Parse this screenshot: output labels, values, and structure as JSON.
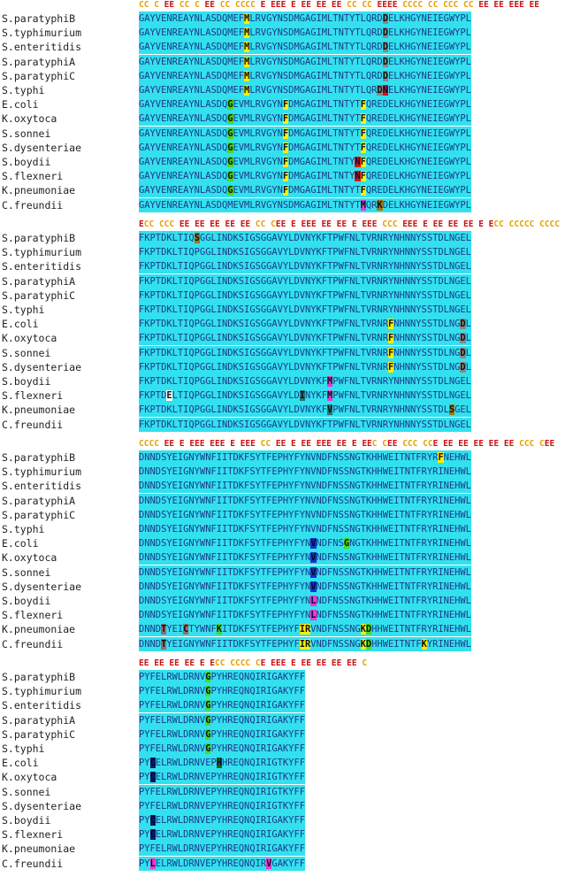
{
  "colors": {
    "background": "#33e0ee",
    "residue": "#1a3a88",
    "annotation_C": "#e8a000",
    "annotation_E": "#cc1010",
    "hl_yellow": "#ffee00",
    "hl_green": "#44dd22",
    "hl_gray": "#888888",
    "hl_red": "#dd1111",
    "hl_magenta": "#ee33dd",
    "hl_blue": "#1133cc",
    "hl_navy": "#0a1a66",
    "hl_olive": "#9c7a10",
    "hl_teal": "#1a7a7a",
    "hl_darkgreen": "#156615",
    "hl_brown": "#9a6a6a",
    "hl_white": "#ffffff"
  },
  "blocks": [
    {
      "annotation": "CC C EE CC C EE CC CCCC E EEE E EE EE EE CC CC EEEE CCCC CC CCC CC EE EE EEE EE",
      "rows": [
        {
          "name": "S.paratyphiB",
          "seq": "GAYVENREAYNLASDQMEFMLRVGYNSDMGAGIMLTNTYTLQRDDELKHGYNEIEGWYPL",
          "hl": [
            {
              "i": 19,
              "c": "hl_yellow"
            },
            {
              "i": 44,
              "c": "hl_gray"
            }
          ]
        },
        {
          "name": "S.typhimurium",
          "seq": "GAYVENREAYNLASDQMEFMLRVGYNSDMGAGIMLTNTYTLQRDDELKHGYNEIEGWYPL",
          "hl": [
            {
              "i": 19,
              "c": "hl_yellow"
            },
            {
              "i": 44,
              "c": "hl_gray"
            }
          ]
        },
        {
          "name": "S.enteritidis",
          "seq": "GAYVENREAYNLASDQMEFMLRVGYNSDMGAGIMLTNTYTLQRDDELKHGYNEIEGWYPL",
          "hl": [
            {
              "i": 19,
              "c": "hl_yellow"
            },
            {
              "i": 44,
              "c": "hl_gray"
            }
          ]
        },
        {
          "name": "S.paratyphiA",
          "seq": "GAYVENREAYNLASDQMEFMLRVGYNSDMGAGIMLTNTYTLQRDDELKHGYNEIEGWYPL",
          "hl": [
            {
              "i": 19,
              "c": "hl_yellow"
            },
            {
              "i": 44,
              "c": "hl_gray"
            }
          ]
        },
        {
          "name": "S.paratyphiC",
          "seq": "GAYVENREAYNLASDQMEFMLRVGYNSDMGAGIMLTNTYTLQRDDELKHGYNEIEGWYPL",
          "hl": [
            {
              "i": 19,
              "c": "hl_yellow"
            },
            {
              "i": 44,
              "c": "hl_gray"
            }
          ]
        },
        {
          "name": "S.typhi",
          "seq": "GAYVENREAYNLASDQMEFMLRVGYNSDMGAGIMLTNTYTLQRDNELKHGYNEIEGWYPL",
          "hl": [
            {
              "i": 19,
              "c": "hl_yellow"
            },
            {
              "i": 43,
              "c": "hl_gray"
            },
            {
              "i": 44,
              "c": "hl_red"
            }
          ]
        },
        {
          "name": "E.coli",
          "seq": "GAYVENREAYNLASDQGEVMLRVGYNFDMGAGIMLTNTYTFQREDELKHGYNEIEGWYPL",
          "hl": [
            {
              "i": 16,
              "c": "hl_green"
            },
            {
              "i": 26,
              "c": "hl_yellow"
            },
            {
              "i": 40,
              "c": "hl_yellow"
            }
          ]
        },
        {
          "name": "K.oxytoca",
          "seq": "GAYVENREAYNLASDQGEVMLRVGYNFDMGAGIMLTNTYTFQREDELKHGYNEIEGWYPL",
          "hl": [
            {
              "i": 16,
              "c": "hl_green"
            },
            {
              "i": 26,
              "c": "hl_yellow"
            },
            {
              "i": 40,
              "c": "hl_yellow"
            }
          ]
        },
        {
          "name": "S.sonnei",
          "seq": "GAYVENREAYNLASDQGEVMLRVGYNFDMGAGIMLTNTYTFQREDELKHGYNEIEGWYPL",
          "hl": [
            {
              "i": 16,
              "c": "hl_green"
            },
            {
              "i": 26,
              "c": "hl_yellow"
            },
            {
              "i": 40,
              "c": "hl_yellow"
            }
          ]
        },
        {
          "name": "S.dysenteriae",
          "seq": "GAYVENREAYNLASDQGEVMLRVGYNFDMGAGIMLTNTYTFQREDELKHGYNEIEGWYPL",
          "hl": [
            {
              "i": 16,
              "c": "hl_green"
            },
            {
              "i": 26,
              "c": "hl_yellow"
            },
            {
              "i": 40,
              "c": "hl_yellow"
            }
          ]
        },
        {
          "name": "S.boydii",
          "seq": "GAYVENREAYNLASDQGEVMLRVGYNFDMGAGIMLTNTYNFQREDELKHGYNEIEGWYPL",
          "hl": [
            {
              "i": 16,
              "c": "hl_green"
            },
            {
              "i": 26,
              "c": "hl_yellow"
            },
            {
              "i": 39,
              "c": "hl_red"
            },
            {
              "i": 40,
              "c": "hl_yellow"
            }
          ]
        },
        {
          "name": "S.flexneri",
          "seq": "GAYVENREAYNLASDQGEVMLRVGYNFDMGAGIMLTNTYNFQREDELKHGYNEIEGWYPL",
          "hl": [
            {
              "i": 16,
              "c": "hl_green"
            },
            {
              "i": 26,
              "c": "hl_yellow"
            },
            {
              "i": 39,
              "c": "hl_red"
            },
            {
              "i": 40,
              "c": "hl_yellow"
            }
          ]
        },
        {
          "name": "K.pneumoniae",
          "seq": "GAYVENREAYNLASDQGEVMLRVGYNFDMGAGIMLTNTYTFQREDELKHGYNEIEGWYPL",
          "hl": [
            {
              "i": 16,
              "c": "hl_green"
            },
            {
              "i": 26,
              "c": "hl_yellow"
            },
            {
              "i": 40,
              "c": "hl_yellow"
            }
          ]
        },
        {
          "name": "C.freundii",
          "seq": "GAYVENREAYNLASDQMEVMLRVGYNSDMGAGIMLTNTYTMQRKDELKHGYNEIEGWYPL",
          "hl": [
            {
              "i": 40,
              "c": "hl_magenta"
            },
            {
              "i": 43,
              "c": "hl_olive"
            }
          ]
        }
      ]
    },
    {
      "annotation": "ECC CCC EE EE EE EE EE CC CEE E EEE EE EE E EEE CCC EEE E EE EE EE E ECC CCCCC CCCC",
      "rows": [
        {
          "name": "S.paratyphiB",
          "seq": "FKPTDKLTIQSGGLINDKSIGSGGAVYLDVNYKFTPWFNLTVRNRYNHNNYSSTDLNGEL",
          "hl": [
            {
              "i": 10,
              "c": "hl_olive"
            }
          ]
        },
        {
          "name": "S.typhimurium",
          "seq": "FKPTDKLTIQPGGLINDKSIGSGGAVYLDVNYKFTPWFNLTVRNRYNHNNYSSTDLNGEL",
          "hl": []
        },
        {
          "name": "S.enteritidis",
          "seq": "FKPTDKLTIQPGGLINDKSIGSGGAVYLDVNYKFTPWFNLTVRNRYNHNNYSSTDLNGEL",
          "hl": []
        },
        {
          "name": "S.paratyphiA",
          "seq": "FKPTDKLTIQPGGLINDKSIGSGGAVYLDVNYKFTPWFNLTVRNRYNHNNYSSTDLNGEL",
          "hl": []
        },
        {
          "name": "S.paratyphiC",
          "seq": "FKPTDKLTIQPGGLINDKSIGSGGAVYLDVNYKFTPWFNLTVRNRYNHNNYSSTDLNGEL",
          "hl": []
        },
        {
          "name": "S.typhi",
          "seq": "FKPTDKLTIQPGGLINDKSIGSGGAVYLDVNYKFTPWFNLTVRNRYNHNNYSSTDLNGEL",
          "hl": []
        },
        {
          "name": "E.coli",
          "seq": "FKPTDKLTIQPGGLINDKSIGSGGAVYLDVNYKFTPWFNLTVRNRFNHNNYSSTDLNGDL",
          "hl": [
            {
              "i": 45,
              "c": "hl_yellow"
            },
            {
              "i": 58,
              "c": "hl_gray"
            }
          ]
        },
        {
          "name": "K.oxytoca",
          "seq": "FKPTDKLTIQPGGLINDKSIGSGGAVYLDVNYKFTPWFNLTVRNRFNHNNYSSTDLNGDL",
          "hl": [
            {
              "i": 45,
              "c": "hl_yellow"
            },
            {
              "i": 58,
              "c": "hl_gray"
            }
          ]
        },
        {
          "name": "S.sonnei",
          "seq": "FKPTDKLTIQPGGLINDKSIGSGGAVYLDVNYKFTPWFNLTVRNRFNHNNYSSTDLNGDL",
          "hl": [
            {
              "i": 45,
              "c": "hl_yellow"
            },
            {
              "i": 58,
              "c": "hl_gray"
            }
          ]
        },
        {
          "name": "S.dysenteriae",
          "seq": "FKPTDKLTIQPGGLINDKSIGSGGAVYLDVNYKFTPWFNLTVRNRFNHNNYSSTDLNGDL",
          "hl": [
            {
              "i": 45,
              "c": "hl_yellow"
            },
            {
              "i": 58,
              "c": "hl_gray"
            }
          ]
        },
        {
          "name": "S.boydii",
          "seq": "FKPTDKLTIQPGGLINDKSIGSGGAVYLDVNYKFMPWFNLTVRNRYNHNNYSSTDLNGEL",
          "hl": [
            {
              "i": 34,
              "c": "hl_magenta"
            }
          ]
        },
        {
          "name": "S.flexneri",
          "seq": "FKPTDELTIQPGGLINDKSIGSGGAVYLDINYKFMPWFNLTVRNRYNHNNYSSTDLNGEL",
          "hl": [
            {
              "i": 5,
              "c": "hl_white"
            },
            {
              "i": 29,
              "c": "hl_teal"
            },
            {
              "i": 34,
              "c": "hl_magenta"
            }
          ]
        },
        {
          "name": "K.pneumoniae",
          "seq": "FKPTDKLTIQPGGLINDKSIGSGGAVYLDVNYKFVPWFNLTVRNRYNHNNYSSTDLSGEL",
          "hl": [
            {
              "i": 34,
              "c": "hl_teal"
            },
            {
              "i": 56,
              "c": "hl_olive"
            }
          ]
        },
        {
          "name": "C.freundii",
          "seq": "FKPTDKLTIQPGGLINDKSIGSGGAVYLDVNYKFTPWFNLTVRNRYNHNNYSSTDLNGEL",
          "hl": []
        }
      ]
    },
    {
      "annotation": "CCCC EE E EEE EEE E EEE CC EE E EE EEE EE E EEC CEE CCC CCE EE EE EE EE EE CCC CEE",
      "rows": [
        {
          "name": "S.paratyphiB",
          "seq": "DNNDSYEIGNYWNFIITDKFSYTFEPHYFYNVNDFNSSNGTKHHWEITNTFRYRFNEHWL",
          "hl": [
            {
              "i": 54,
              "c": "hl_yellow"
            }
          ]
        },
        {
          "name": "S.typhimurium",
          "seq": "DNNDSYEIGNYWNFIITDKFSYTFEPHYFYNVNDFNSSNGTKHHWEITNTFRYRINEHWL",
          "hl": []
        },
        {
          "name": "S.enteritidis",
          "seq": "DNNDSYEIGNYWNFIITDKFSYTFEPHYFYNVNDFNSSNGTKHHWEITNTFRYRINEHWL",
          "hl": []
        },
        {
          "name": "S.paratyphiA",
          "seq": "DNNDSYEIGNYWNFIITDKFSYTFEPHYFYNVNDFNSSNGTKHHWEITNTFRYRINEHWL",
          "hl": []
        },
        {
          "name": "S.paratyphiC",
          "seq": "DNNDSYEIGNYWNFIITDKFSYTFEPHYFYNVNDFNSSNGTKHHWEITNTFRYRINEHWL",
          "hl": []
        },
        {
          "name": "S.typhi",
          "seq": "DNNDSYEIGNYWNFIITDKFSYTFEPHYFYNVNDFNSSNGTKHHWEITNTFRYRINEHWL",
          "hl": []
        },
        {
          "name": "E.coli",
          "seq": "DNNDSYEIGNYWNFIITDKFSYTFEPHYFYNVNDFNSGNGTKHHWEITNTFRYRINEHWL",
          "hl": [
            {
              "i": 31,
              "c": "hl_blue"
            },
            {
              "i": 37,
              "c": "hl_green"
            }
          ]
        },
        {
          "name": "K.oxytoca",
          "seq": "DNNDSYEIGNYWNFIITDKFSYTFEPHYFYNVNDFNSSNGTKHHWEITNTFRYRINEHWL",
          "hl": [
            {
              "i": 31,
              "c": "hl_blue"
            }
          ]
        },
        {
          "name": "S.sonnei",
          "seq": "DNNDSYEIGNYWNFIITDKFSYTFEPHYFYNVNDFNSSNGTKHHWEITNTFRYRINEHWL",
          "hl": [
            {
              "i": 31,
              "c": "hl_blue"
            }
          ]
        },
        {
          "name": "S.dysenteriae",
          "seq": "DNNDSYEIGNYWNFIITDKFSYTFEPHYFYNVNDFNSSNGTKHHWEITNTFRYRINEHWL",
          "hl": [
            {
              "i": 31,
              "c": "hl_blue"
            }
          ]
        },
        {
          "name": "S.boydii",
          "seq": "DNNDSYEIGNYWNFIITDKFSYTFEPHYFYNLNDFNSSNGTKHHWEITNTFRYRINEHWL",
          "hl": [
            {
              "i": 31,
              "c": "hl_magenta"
            }
          ]
        },
        {
          "name": "S.flexneri",
          "seq": "DNNDSYEIGNYWNFIITDKFSYTFEPHYFYNLNDFNSSNGTKHHWEITNTFRYRINEHWL",
          "hl": [
            {
              "i": 31,
              "c": "hl_magenta"
            }
          ]
        },
        {
          "name": "K.pneumoniae",
          "seq": "DNNDTYEICTYWNFKITDKFSYTFEPHYFIRVNDFNSSNGKDHHWEITNTFRYRINEHWL",
          "hl": [
            {
              "i": 4,
              "c": "hl_brown"
            },
            {
              "i": 8,
              "c": "hl_brown"
            },
            {
              "i": 14,
              "c": "hl_green"
            },
            {
              "i": 29,
              "c": "hl_yellow"
            },
            {
              "i": 30,
              "c": "hl_yellow"
            },
            {
              "i": 40,
              "c": "hl_yellow"
            },
            {
              "i": 41,
              "c": "hl_green"
            }
          ]
        },
        {
          "name": "C.freundii",
          "seq": "DNNDTYEIGNYWNFIITDKFSYTFEPHYFIRVNDFNSSNGKDHHWEITNTFKYRINEHWL",
          "hl": [
            {
              "i": 4,
              "c": "hl_brown"
            },
            {
              "i": 29,
              "c": "hl_yellow"
            },
            {
              "i": 30,
              "c": "hl_yellow"
            },
            {
              "i": 40,
              "c": "hl_yellow"
            },
            {
              "i": 41,
              "c": "hl_green"
            },
            {
              "i": 51,
              "c": "hl_yellow"
            }
          ]
        }
      ]
    },
    {
      "annotation": "EE EE EE EE E ECC CCCC CE EEE E EE EE EE EE C",
      "rows": [
        {
          "name": "S.paratyphiB",
          "seq": "PYFELRWLDRNVGPYHREQNQIRIGAKYFF",
          "hl": [
            {
              "i": 12,
              "c": "hl_green"
            }
          ]
        },
        {
          "name": "S.typhimurium",
          "seq": "PYFELRWLDRNVGPYHREQNQIRIGAKYFF",
          "hl": [
            {
              "i": 12,
              "c": "hl_green"
            }
          ]
        },
        {
          "name": "S.enteritidis",
          "seq": "PYFELRWLDRNVGPYHREQNQIRIGAKYFF",
          "hl": [
            {
              "i": 12,
              "c": "hl_green"
            }
          ]
        },
        {
          "name": "S.paratyphiA",
          "seq": "PYFELRWLDRNVGPYHREQNQIRIGAKYFF",
          "hl": [
            {
              "i": 12,
              "c": "hl_green"
            }
          ]
        },
        {
          "name": "S.paratyphiC",
          "seq": "PYFELRWLDRNVGPYHREQNQIRIGAKYFF",
          "hl": [
            {
              "i": 12,
              "c": "hl_green"
            }
          ]
        },
        {
          "name": "S.typhi",
          "seq": "PYFELRWLDRNVGPYHREQNQIRIGAKYFF",
          "hl": [
            {
              "i": 12,
              "c": "hl_green"
            }
          ]
        },
        {
          "name": "E.coli",
          "seq": "PYCELRWLDRNVEPHHREQNQIRIGTKYFF",
          "hl": [
            {
              "i": 2,
              "c": "hl_navy"
            },
            {
              "i": 14,
              "c": "hl_darkgreen"
            }
          ]
        },
        {
          "name": "K.oxytoca",
          "seq": "PYCELRWLDRNVEPYHREQNQIRIGTKYFF",
          "hl": [
            {
              "i": 2,
              "c": "hl_navy"
            }
          ]
        },
        {
          "name": "S.sonnei",
          "seq": "PYFELRWLDRNVEPYHREQNQIRIGTKYFF",
          "hl": []
        },
        {
          "name": "S.dysenteriae",
          "seq": "PYFELRWLDRNVEPYHREQNQIRIGTKYFF",
          "hl": []
        },
        {
          "name": "S.boydii",
          "seq": "PYCELRWLDRNVEPYHREQNQIRIGAKYFF",
          "hl": [
            {
              "i": 2,
              "c": "hl_navy"
            }
          ]
        },
        {
          "name": "S.flexneri",
          "seq": "PYCELRWLDRNVEPYHREQNQIRIGAKYFF",
          "hl": [
            {
              "i": 2,
              "c": "hl_navy"
            }
          ]
        },
        {
          "name": "K.pneumoniae",
          "seq": "PYFELRWLDRNVEPYHREQNQIRIGAKYFF",
          "hl": []
        },
        {
          "name": "C.freundii",
          "seq": "PYLELRWLDRNVEPYHREQNQIRVGAKYFF",
          "hl": [
            {
              "i": 2,
              "c": "hl_magenta"
            },
            {
              "i": 23,
              "c": "hl_magenta"
            }
          ]
        }
      ]
    }
  ]
}
